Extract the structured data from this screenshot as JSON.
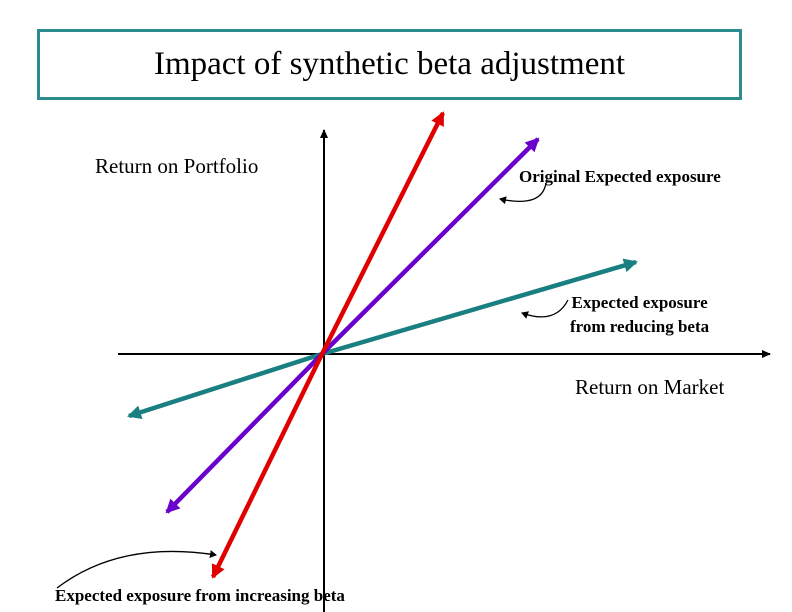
{
  "title": "Impact of synthetic beta adjustment",
  "axes": {
    "y_label": "Return on Portfolio",
    "x_label": "Return on Market"
  },
  "lines": [
    {
      "id": "original",
      "label": "Original Expected exposure",
      "color": "#6a00cc"
    },
    {
      "id": "reduced",
      "label_line1": "Expected exposure",
      "label_line2": "from reducing beta",
      "color": "#1a7f80"
    },
    {
      "id": "increased",
      "label": "Expected exposure from increasing beta",
      "color": "#e00000"
    }
  ]
}
